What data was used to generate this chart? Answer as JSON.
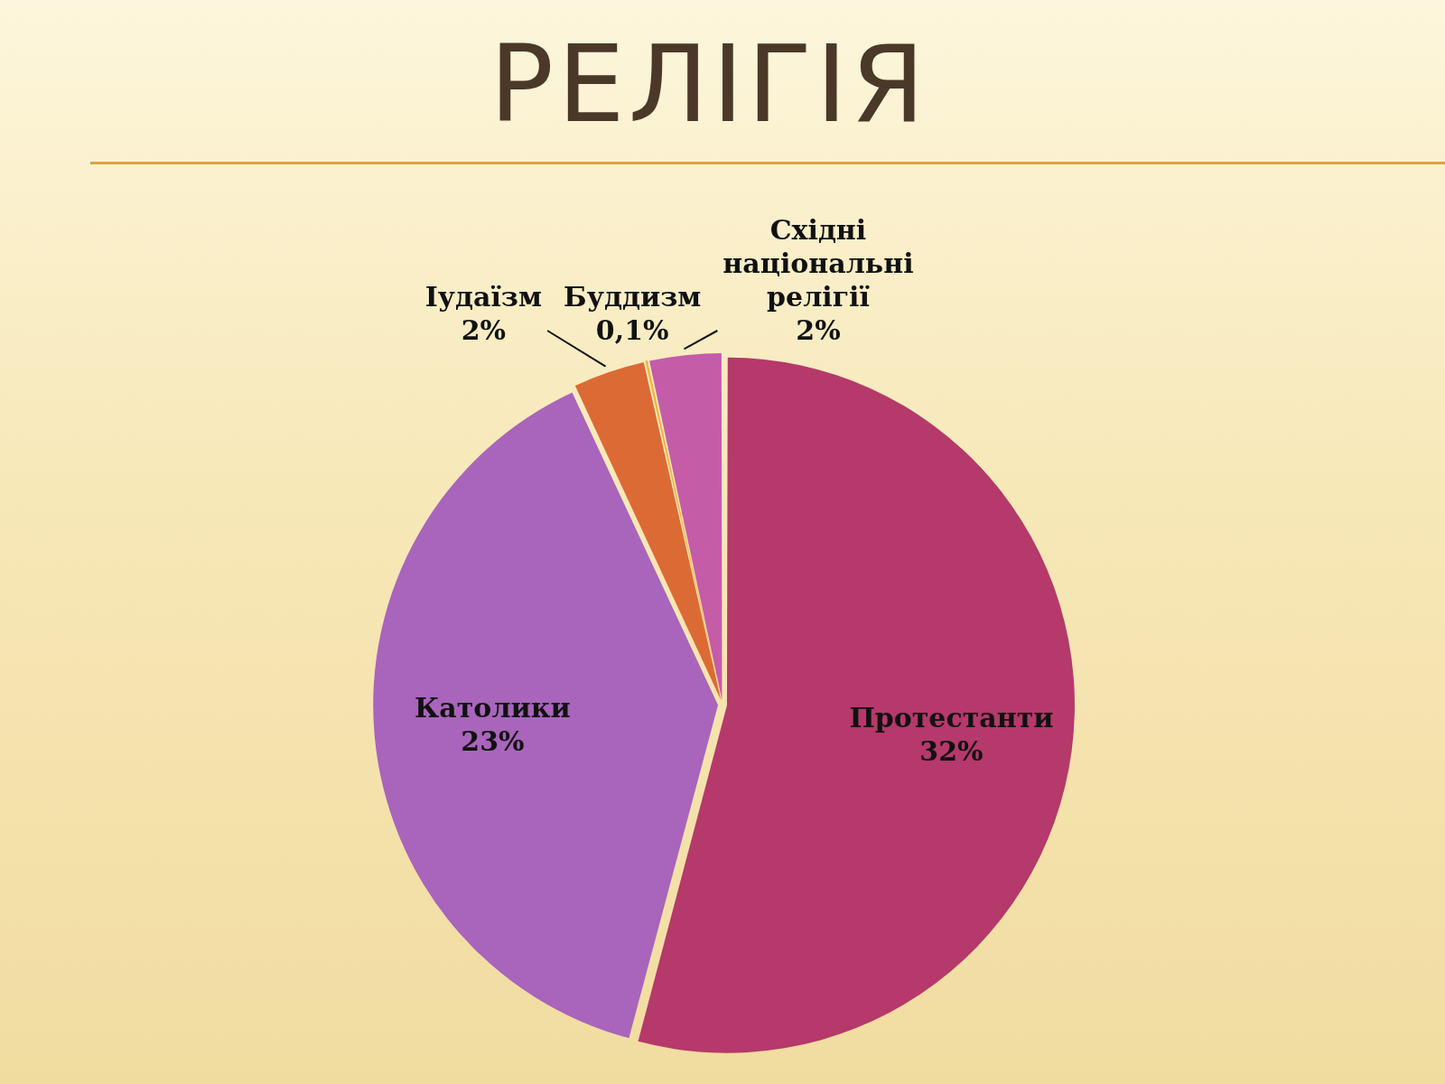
{
  "chart_data": {
    "type": "pie",
    "title": "РЕЛІГІЯ",
    "categories": [
      "Протестанти",
      "Католики",
      "Іудаїзм",
      "Буддизм",
      "Східні національні релігії"
    ],
    "values": [
      32,
      23,
      2,
      0.1,
      2
    ],
    "colors": [
      "#b5396a",
      "#a865bb",
      "#dc6a35",
      "#f2b340",
      "#c45ca8"
    ],
    "value_labels": [
      "32%",
      "23%",
      "2%",
      "0,1%",
      "2%"
    ]
  }
}
